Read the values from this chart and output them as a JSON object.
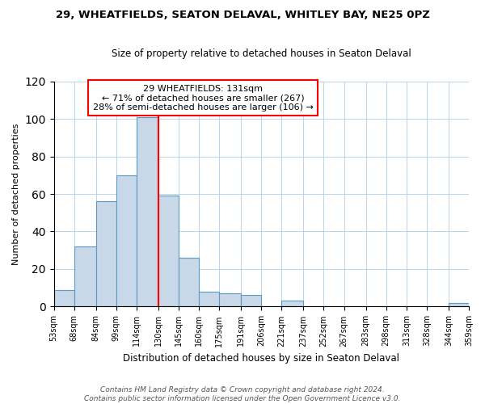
{
  "title": "29, WHEATFIELDS, SEATON DELAVAL, WHITLEY BAY, NE25 0PZ",
  "subtitle": "Size of property relative to detached houses in Seaton Delaval",
  "xlabel": "Distribution of detached houses by size in Seaton Delaval",
  "ylabel": "Number of detached properties",
  "footer_line1": "Contains HM Land Registry data © Crown copyright and database right 2024.",
  "footer_line2": "Contains public sector information licensed under the Open Government Licence v3.0.",
  "bar_edges": [
    53,
    68,
    84,
    99,
    114,
    130,
    145,
    160,
    175,
    191,
    206,
    221,
    237,
    252,
    267,
    283,
    298,
    313,
    328,
    344,
    359
  ],
  "bar_heights": [
    9,
    32,
    56,
    70,
    101,
    59,
    26,
    8,
    7,
    6,
    0,
    3,
    0,
    0,
    0,
    0,
    0,
    0,
    0,
    2
  ],
  "bar_color": "#c8d8e8",
  "bar_edgecolor": "#5a9ac8",
  "vline_x": 130,
  "vline_color": "red",
  "annotation_title": "29 WHEATFIELDS: 131sqm",
  "annotation_line1": "← 71% of detached houses are smaller (267)",
  "annotation_line2": "28% of semi-detached houses are larger (106) →",
  "annotation_box_edgecolor": "red",
  "annotation_box_facecolor": "white",
  "ylim": [
    0,
    120
  ],
  "xlim_left": 53,
  "xlim_right": 359,
  "tick_labels": [
    "53sqm",
    "68sqm",
    "84sqm",
    "99sqm",
    "114sqm",
    "130sqm",
    "145sqm",
    "160sqm",
    "175sqm",
    "191sqm",
    "206sqm",
    "221sqm",
    "237sqm",
    "252sqm",
    "267sqm",
    "283sqm",
    "298sqm",
    "313sqm",
    "328sqm",
    "344sqm",
    "359sqm"
  ]
}
